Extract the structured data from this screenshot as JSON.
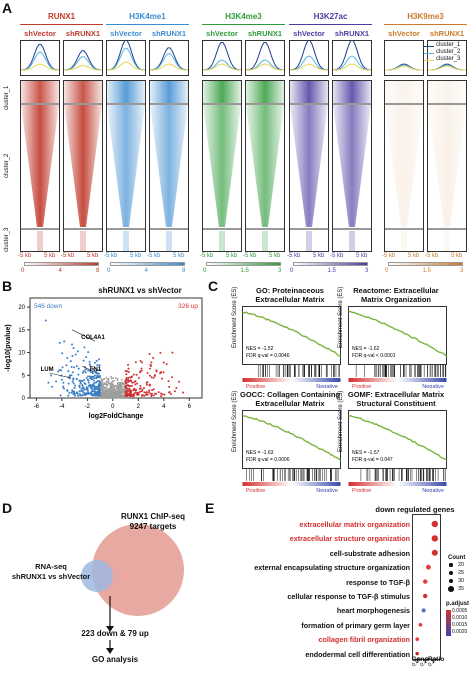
{
  "panelA": {
    "letter": "A",
    "marks": [
      {
        "name": "RUNX1",
        "color": "#c0392b",
        "left": "shVector",
        "right": "shRUNX1",
        "colorbar": [
          "0",
          "4",
          "8"
        ]
      },
      {
        "name": "H3K4me1",
        "color": "#3b8bd0",
        "left": "shVector",
        "right": "shRUNX1",
        "colorbar": [
          "0",
          "4",
          "8"
        ]
      },
      {
        "name": "H3K4me3",
        "color": "#2e9b3a",
        "left": "shVector",
        "right": "shRUNX1",
        "colorbar": [
          "0",
          "1.5",
          "3"
        ]
      },
      {
        "name": "H3K27ac",
        "color": "#4b3ca0",
        "left": "shVector",
        "right": "shRUNX1",
        "colorbar": [
          "0",
          "1.5",
          "3"
        ]
      },
      {
        "name": "H3K9me3",
        "color": "#c97a2b",
        "left": "shVector",
        "right": "shRUNX1",
        "colorbar": [
          "0",
          "1.5",
          "3"
        ]
      }
    ],
    "axis_left": "-5 kb",
    "axis_right": "5 kb",
    "clusters": [
      "cluster_1",
      "cluster_2",
      "cluster_3"
    ],
    "legend": [
      "cluster_1",
      "cluster_2",
      "cluster_3"
    ],
    "legend_colors": [
      "#1f3f8f",
      "#58b8e0",
      "#e8d44d"
    ]
  },
  "panelB": {
    "letter": "B",
    "title": "shRUNX1 vs shVector",
    "down_label": "546 down",
    "up_label": "326 up",
    "xlabel": "log2FoldChange",
    "ylabel": "-log10(pvalue)",
    "genes": [
      "COL4A1",
      "LUM",
      "FN1"
    ],
    "xticks": [
      "-6",
      "-4",
      "-2",
      "0",
      "2",
      "4",
      "6"
    ],
    "yticks": [
      "0",
      "5",
      "10",
      "15",
      "20"
    ]
  },
  "panelC": {
    "letter": "C",
    "plots": [
      {
        "title1": "GO: Proteinaceous",
        "title2": "Extracellular Matrix",
        "nes": "NES = -1.52",
        "fdr": "FDR q-val = 0.0046"
      },
      {
        "title1": "Reactome: Extracellular",
        "title2": "Matrix Organization",
        "nes": "NES = -1.62",
        "fdr": "FDR q-val < 0.0001"
      },
      {
        "title1": "GOCC: Collagen Containing",
        "title2": "Extracellular Matrix",
        "nes": "NES = -1.63",
        "fdr": "FDR q-val = 0.0006"
      },
      {
        "title1": "GOMF: Extracellular Matrix",
        "title2": "Structural Constituent",
        "nes": "NES = -1.57",
        "fdr": "FDR q-val = 0.047"
      }
    ],
    "ylabel": "Enrichment Score (ES)",
    "positive": "Positive",
    "negative": "Negative"
  },
  "panelD": {
    "letter": "D",
    "chip_title": "RUNX1 ChIP-seq",
    "chip_targets": "9247 targets",
    "rna_title": "RNA-seq",
    "rna_sub": "shRUNX1 vs shVector",
    "overlap": "223 down & 79 up",
    "go": "GO analysis"
  },
  "panelE": {
    "letter": "E",
    "title": "down regulated genes",
    "terms": [
      {
        "label": "extracellular matrix organization",
        "red": true
      },
      {
        "label": "extracellular structure organization",
        "red": true
      },
      {
        "label": "cell-substrate adhesion",
        "red": false
      },
      {
        "label": "external encapsulating structure organization",
        "red": false
      },
      {
        "label": "response to TGF-β",
        "red": false
      },
      {
        "label": "cellular response to TGF-β stimulus",
        "red": false
      },
      {
        "label": "heart morphogenesis",
        "red": false
      },
      {
        "label": "formation of primary germ layer",
        "red": false
      },
      {
        "label": "collagen fibril organization",
        "red": true
      },
      {
        "label": "endodermal cell differentiation",
        "red": false
      }
    ],
    "xlabel": "GeneRatio",
    "xticks": [
      "0.05",
      "0.10",
      "0.15"
    ],
    "count_title": "Count",
    "count_values": [
      "20",
      "25",
      "30",
      "35"
    ],
    "padj_title": "p.adjust",
    "padj_values": [
      "0.0005",
      "0.0010",
      "0.0015",
      "0.0020"
    ]
  },
  "chart_data": {
    "type": "scatter",
    "title": "down regulated genes",
    "xlabel": "GeneRatio",
    "categories": [
      "extracellular matrix organization",
      "extracellular structure organization",
      "cell-substrate adhesion",
      "external encapsulating structure organization",
      "response to TGF-β",
      "cellular response to TGF-β stimulus",
      "heart morphogenesis",
      "formation of primary germ layer",
      "collagen fibril organization",
      "endodermal cell differentiation"
    ],
    "x": [
      0.16,
      0.16,
      0.16,
      0.12,
      0.1,
      0.1,
      0.09,
      0.07,
      0.05,
      0.05
    ]
  }
}
